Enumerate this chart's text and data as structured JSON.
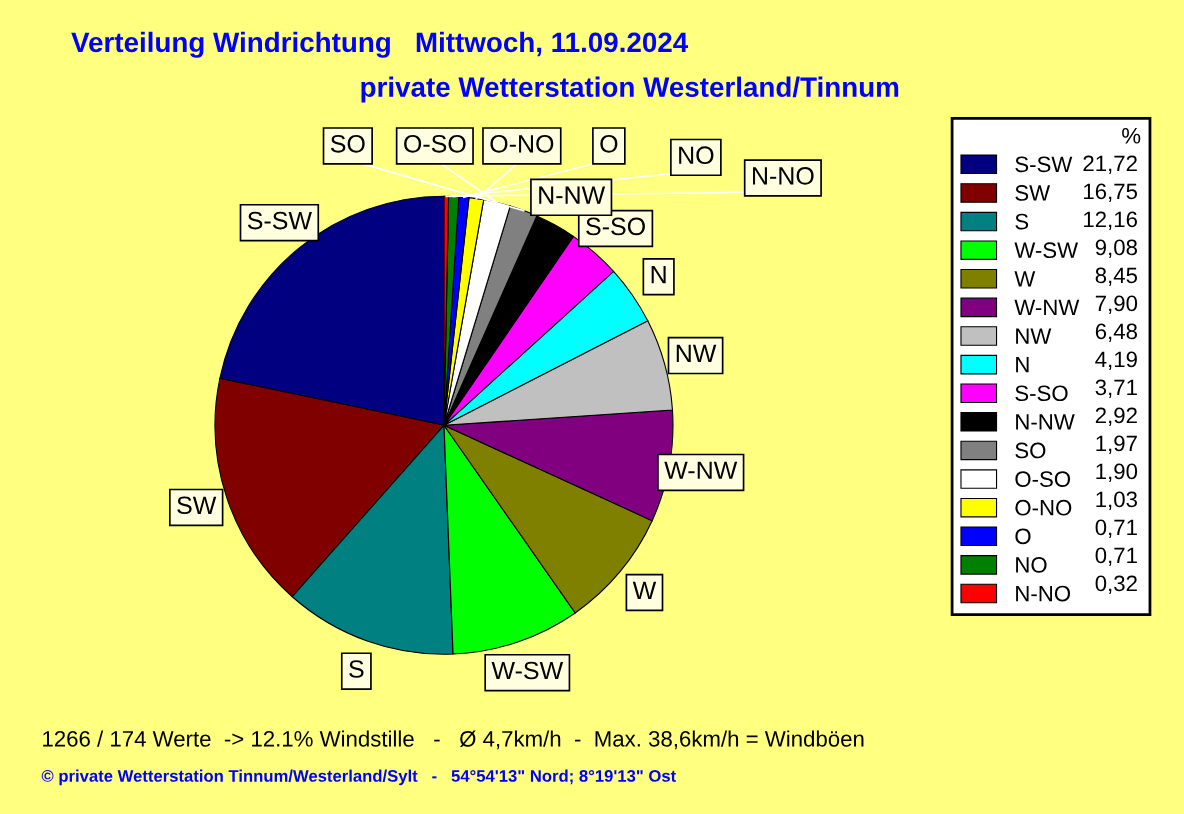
{
  "chart_data": {
    "type": "pie",
    "title": "Verteilung Windrichtung   Mittwoch, 11.09.2024",
    "subtitle": "private Wetterstation Westerland/Tinnum",
    "legend_title": "%",
    "legend": "right",
    "categories": [
      "S-SW",
      "SW",
      "S",
      "W-SW",
      "W",
      "W-NW",
      "NW",
      "N",
      "S-SO",
      "N-NW",
      "SO",
      "O-SO",
      "O-NO",
      "O",
      "NO",
      "N-NO"
    ],
    "values": [
      21.72,
      16.75,
      12.16,
      9.08,
      8.45,
      7.9,
      6.48,
      4.19,
      3.71,
      2.92,
      1.97,
      1.9,
      1.03,
      0.71,
      0.71,
      0.32
    ],
    "value_labels": [
      "21,72",
      "16,75",
      "12,16",
      "9,08",
      "8,45",
      "7,90",
      "6,48",
      "4,19",
      "3,71",
      "2,92",
      "1,97",
      "1,90",
      "1,03",
      "0,71",
      "0,71",
      "0,32"
    ],
    "colors": [
      "#000080",
      "#800000",
      "#008080",
      "#00ff00",
      "#808000",
      "#800080",
      "#c0c0c0",
      "#00ffff",
      "#ff00ff",
      "#000000",
      "#808080",
      "#ffffff",
      "#ffff00",
      "#0000ff",
      "#008000",
      "#ff0000"
    ],
    "annotations": [
      "1266 / 174 Werte  -> 12.1% Windstille   -   Ø 4,7km/h  -  Max. 38,6km/h = Windböen",
      "© private Wetterstation Tinnum/Westerland/Sylt   -   54°54'13\" Nord; 8°19'13\" Ost"
    ]
  }
}
